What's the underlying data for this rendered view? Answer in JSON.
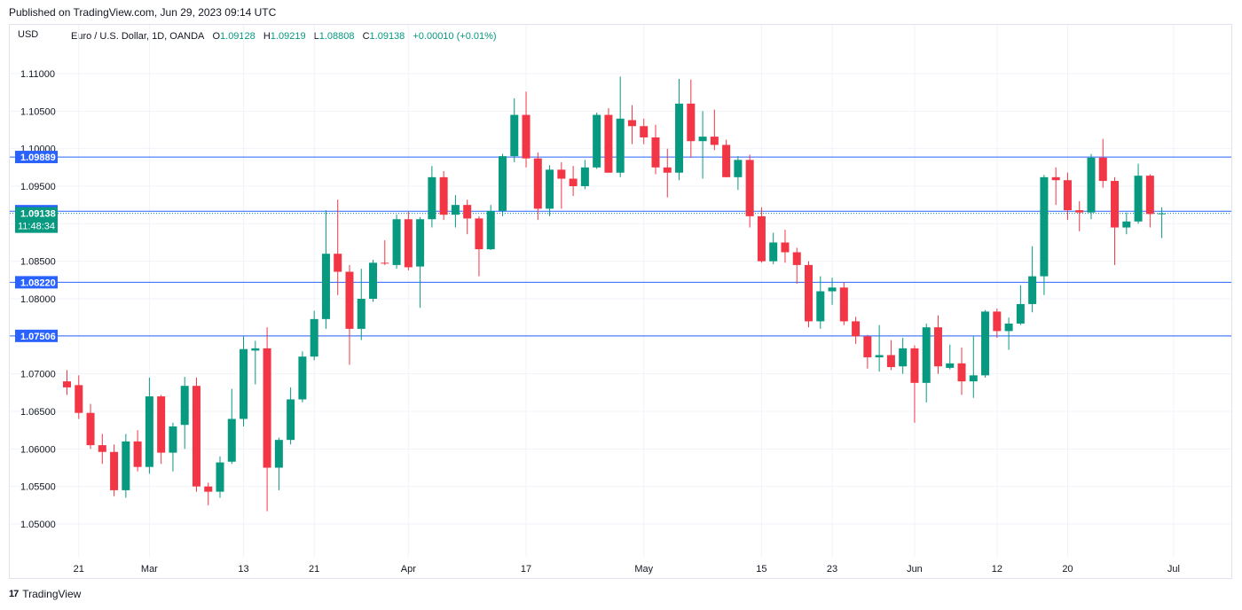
{
  "header": {
    "published": "Published on TradingView.com, Jun 29, 2023 09:14 UTC",
    "currency": "USD",
    "symbol": "Euro / U.S. Dollar, 1D, OANDA",
    "o_label": "O",
    "o_value": "1.09128",
    "h_label": "H",
    "h_value": "1.09219",
    "l_label": "L",
    "l_value": "1.08808",
    "c_label": "C",
    "c_value": "1.09138",
    "change": "+0.00010 (+0.01%)"
  },
  "footer": {
    "brand": "TradingView",
    "logo_text": "17"
  },
  "colors": {
    "up": "#089981",
    "down": "#f23645",
    "hline": "#2962ff",
    "grid": "#f0f3fa"
  },
  "chart_data": {
    "type": "candlestick",
    "ylim": [
      1.045,
      1.1145
    ],
    "y_ticks": [
      "1.11000",
      "1.10500",
      "1.10000",
      "1.09500",
      "1.09000",
      "1.08500",
      "1.08000",
      "1.07500",
      "1.07000",
      "1.06500",
      "1.06000",
      "1.05500",
      "1.05000"
    ],
    "x_ticks": [
      {
        "label": "21",
        "index": 1
      },
      {
        "label": "Mar",
        "index": 7
      },
      {
        "label": "13",
        "index": 15
      },
      {
        "label": "21",
        "index": 21
      },
      {
        "label": "Apr",
        "index": 29
      },
      {
        "label": "17",
        "index": 39
      },
      {
        "label": "May",
        "index": 49
      },
      {
        "label": "15",
        "index": 59
      },
      {
        "label": "23",
        "index": 65
      },
      {
        "label": "Jun",
        "index": 72
      },
      {
        "label": "12",
        "index": 79
      },
      {
        "label": "20",
        "index": 85
      },
      {
        "label": "Jul",
        "index": 94
      }
    ],
    "horizontal_lines": [
      {
        "label": "1.09889",
        "value": 1.09889
      },
      {
        "label": "1.09167",
        "value": 1.09167
      },
      {
        "label": "1.08220",
        "value": 1.0822
      },
      {
        "label": "1.07506",
        "value": 1.07506
      }
    ],
    "last_price": {
      "label": "1.09138",
      "value": 1.09138,
      "countdown": "11:48:34"
    },
    "candles": [
      {
        "o": 1.069,
        "h": 1.0705,
        "l": 1.0672,
        "c": 1.0682
      },
      {
        "o": 1.0685,
        "h": 1.0698,
        "l": 1.064,
        "c": 1.0648
      },
      {
        "o": 1.0648,
        "h": 1.066,
        "l": 1.06,
        "c": 1.0605
      },
      {
        "o": 1.0605,
        "h": 1.062,
        "l": 1.058,
        "c": 1.0596
      },
      {
        "o": 1.0596,
        "h": 1.0606,
        "l": 1.0537,
        "c": 1.0545
      },
      {
        "o": 1.0545,
        "h": 1.062,
        "l": 1.0535,
        "c": 1.061
      },
      {
        "o": 1.061,
        "h": 1.0625,
        "l": 1.057,
        "c": 1.0576
      },
      {
        "o": 1.0576,
        "h": 1.0695,
        "l": 1.0567,
        "c": 1.067
      },
      {
        "o": 1.067,
        "h": 1.0672,
        "l": 1.058,
        "c": 1.0595
      },
      {
        "o": 1.0595,
        "h": 1.0635,
        "l": 1.057,
        "c": 1.063
      },
      {
        "o": 1.0632,
        "h": 1.0696,
        "l": 1.06,
        "c": 1.0684
      },
      {
        "o": 1.0684,
        "h": 1.0695,
        "l": 1.0543,
        "c": 1.055
      },
      {
        "o": 1.055,
        "h": 1.0555,
        "l": 1.0525,
        "c": 1.0543
      },
      {
        "o": 1.0543,
        "h": 1.059,
        "l": 1.0535,
        "c": 1.0582
      },
      {
        "o": 1.0583,
        "h": 1.068,
        "l": 1.058,
        "c": 1.064
      },
      {
        "o": 1.064,
        "h": 1.075,
        "l": 1.063,
        "c": 1.0733
      },
      {
        "o": 1.0731,
        "h": 1.0744,
        "l": 1.0686,
        "c": 1.0734
      },
      {
        "o": 1.0734,
        "h": 1.0762,
        "l": 1.0517,
        "c": 1.0575
      },
      {
        "o": 1.0575,
        "h": 1.0615,
        "l": 1.0545,
        "c": 1.0612
      },
      {
        "o": 1.0612,
        "h": 1.0682,
        "l": 1.0606,
        "c": 1.0666
      },
      {
        "o": 1.0666,
        "h": 1.073,
        "l": 1.0662,
        "c": 1.0723
      },
      {
        "o": 1.0723,
        "h": 1.0784,
        "l": 1.0718,
        "c": 1.0773
      },
      {
        "o": 1.0773,
        "h": 1.0918,
        "l": 1.076,
        "c": 1.086
      },
      {
        "o": 1.086,
        "h": 1.0932,
        "l": 1.0805,
        "c": 1.0836
      },
      {
        "o": 1.0836,
        "h": 1.0845,
        "l": 1.0712,
        "c": 1.076
      },
      {
        "o": 1.076,
        "h": 1.084,
        "l": 1.0745,
        "c": 1.08
      },
      {
        "o": 1.08,
        "h": 1.0852,
        "l": 1.0796,
        "c": 1.0848
      },
      {
        "o": 1.0848,
        "h": 1.0878,
        "l": 1.0845,
        "c": 1.0847
      },
      {
        "o": 1.0845,
        "h": 1.0912,
        "l": 1.084,
        "c": 1.0906
      },
      {
        "o": 1.0906,
        "h": 1.0916,
        "l": 1.0838,
        "c": 1.0842
      },
      {
        "o": 1.0843,
        "h": 1.0909,
        "l": 1.0788,
        "c": 1.0906
      },
      {
        "o": 1.0906,
        "h": 1.0977,
        "l": 1.0895,
        "c": 1.0962
      },
      {
        "o": 1.0962,
        "h": 1.097,
        "l": 1.0905,
        "c": 1.0912
      },
      {
        "o": 1.0912,
        "h": 1.0938,
        "l": 1.0895,
        "c": 1.0925
      },
      {
        "o": 1.0925,
        "h": 1.0932,
        "l": 1.0886,
        "c": 1.0907
      },
      {
        "o": 1.0907,
        "h": 1.091,
        "l": 1.083,
        "c": 1.0866
      },
      {
        "o": 1.0866,
        "h": 1.0925,
        "l": 1.0865,
        "c": 1.0917
      },
      {
        "o": 1.0917,
        "h": 1.0993,
        "l": 1.091,
        "c": 1.099
      },
      {
        "o": 1.099,
        "h": 1.1067,
        "l": 1.0982,
        "c": 1.1045
      },
      {
        "o": 1.1045,
        "h": 1.1076,
        "l": 1.0975,
        "c": 1.0987
      },
      {
        "o": 1.0987,
        "h": 1.0995,
        "l": 1.0905,
        "c": 1.092
      },
      {
        "o": 1.092,
        "h": 1.0978,
        "l": 1.091,
        "c": 1.0972
      },
      {
        "o": 1.0972,
        "h": 1.0982,
        "l": 1.092,
        "c": 1.096
      },
      {
        "o": 1.096,
        "h": 1.0977,
        "l": 1.0937,
        "c": 1.095
      },
      {
        "o": 1.095,
        "h": 1.0985,
        "l": 1.0946,
        "c": 1.0975
      },
      {
        "o": 1.0975,
        "h": 1.1048,
        "l": 1.0973,
        "c": 1.1045
      },
      {
        "o": 1.1045,
        "h": 1.1054,
        "l": 1.0968,
        "c": 1.0968
      },
      {
        "o": 1.0968,
        "h": 1.1096,
        "l": 1.0962,
        "c": 1.104
      },
      {
        "o": 1.1038,
        "h": 1.1058,
        "l": 1.1006,
        "c": 1.103
      },
      {
        "o": 1.103,
        "h": 1.104,
        "l": 1.1006,
        "c": 1.1015
      },
      {
        "o": 1.1015,
        "h": 1.1032,
        "l": 1.0966,
        "c": 1.0975
      },
      {
        "o": 1.0975,
        "h": 1.1,
        "l": 1.0935,
        "c": 1.0968
      },
      {
        "o": 1.0968,
        "h": 1.1093,
        "l": 1.0958,
        "c": 1.106
      },
      {
        "o": 1.106,
        "h": 1.1092,
        "l": 1.0988,
        "c": 1.101
      },
      {
        "o": 1.101,
        "h": 1.105,
        "l": 1.096,
        "c": 1.1016
      },
      {
        "o": 1.1016,
        "h": 1.1052,
        "l": 1.0998,
        "c": 1.1005
      },
      {
        "o": 1.1005,
        "h": 1.1012,
        "l": 1.0962,
        "c": 1.0962
      },
      {
        "o": 1.0962,
        "h": 1.099,
        "l": 1.0945,
        "c": 1.0985
      },
      {
        "o": 1.0985,
        "h": 1.0992,
        "l": 1.0895,
        "c": 1.091
      },
      {
        "o": 1.091,
        "h": 1.0922,
        "l": 1.0848,
        "c": 1.085
      },
      {
        "o": 1.085,
        "h": 1.0888,
        "l": 1.0846,
        "c": 1.0875
      },
      {
        "o": 1.0875,
        "h": 1.0892,
        "l": 1.0848,
        "c": 1.0862
      },
      {
        "o": 1.0862,
        "h": 1.0868,
        "l": 1.082,
        "c": 1.0845
      },
      {
        "o": 1.0845,
        "h": 1.085,
        "l": 1.0762,
        "c": 1.077
      },
      {
        "o": 1.077,
        "h": 1.083,
        "l": 1.076,
        "c": 1.081
      },
      {
        "o": 1.081,
        "h": 1.0828,
        "l": 1.0792,
        "c": 1.0815
      },
      {
        "o": 1.0815,
        "h": 1.0822,
        "l": 1.0765,
        "c": 1.077
      },
      {
        "o": 1.077,
        "h": 1.0776,
        "l": 1.074,
        "c": 1.075
      },
      {
        "o": 1.075,
        "h": 1.0752,
        "l": 1.0707,
        "c": 1.0722
      },
      {
        "o": 1.0722,
        "h": 1.0765,
        "l": 1.0703,
        "c": 1.0725
      },
      {
        "o": 1.0725,
        "h": 1.0745,
        "l": 1.0705,
        "c": 1.0709
      },
      {
        "o": 1.071,
        "h": 1.0748,
        "l": 1.07,
        "c": 1.0734
      },
      {
        "o": 1.0734,
        "h": 1.0738,
        "l": 1.0635,
        "c": 1.0688
      },
      {
        "o": 1.0688,
        "h": 1.0767,
        "l": 1.0662,
        "c": 1.0762
      },
      {
        "o": 1.0762,
        "h": 1.0778,
        "l": 1.07,
        "c": 1.071
      },
      {
        "o": 1.0708,
        "h": 1.0739,
        "l": 1.0706,
        "c": 1.0714
      },
      {
        "o": 1.0714,
        "h": 1.0735,
        "l": 1.0672,
        "c": 1.069
      },
      {
        "o": 1.069,
        "h": 1.075,
        "l": 1.0668,
        "c": 1.0698
      },
      {
        "o": 1.0698,
        "h": 1.0785,
        "l": 1.0695,
        "c": 1.0783
      },
      {
        "o": 1.0783,
        "h": 1.0787,
        "l": 1.0748,
        "c": 1.0757
      },
      {
        "o": 1.0757,
        "h": 1.0775,
        "l": 1.0732,
        "c": 1.0767
      },
      {
        "o": 1.0767,
        "h": 1.0818,
        "l": 1.0765,
        "c": 1.0793
      },
      {
        "o": 1.0793,
        "h": 1.087,
        "l": 1.0782,
        "c": 1.083
      },
      {
        "o": 1.083,
        "h": 1.0965,
        "l": 1.0805,
        "c": 1.0962
      },
      {
        "o": 1.0962,
        "h": 1.0975,
        "l": 1.0925,
        "c": 1.0958
      },
      {
        "o": 1.0958,
        "h": 1.0968,
        "l": 1.0905,
        "c": 1.0918
      },
      {
        "o": 1.0918,
        "h": 1.093,
        "l": 1.089,
        "c": 1.0915
      },
      {
        "o": 1.0915,
        "h": 1.0993,
        "l": 1.0906,
        "c": 1.0988
      },
      {
        "o": 1.0988,
        "h": 1.1013,
        "l": 1.0948,
        "c": 1.0957
      },
      {
        "o": 1.0957,
        "h": 1.0962,
        "l": 1.0845,
        "c": 1.0895
      },
      {
        "o": 1.0895,
        "h": 1.0915,
        "l": 1.0886,
        "c": 1.0903
      },
      {
        "o": 1.0903,
        "h": 1.098,
        "l": 1.09,
        "c": 1.0964
      },
      {
        "o": 1.0964,
        "h": 1.0966,
        "l": 1.0895,
        "c": 1.0913
      },
      {
        "o": 1.09128,
        "h": 1.09219,
        "l": 1.08808,
        "c": 1.09138
      }
    ]
  }
}
